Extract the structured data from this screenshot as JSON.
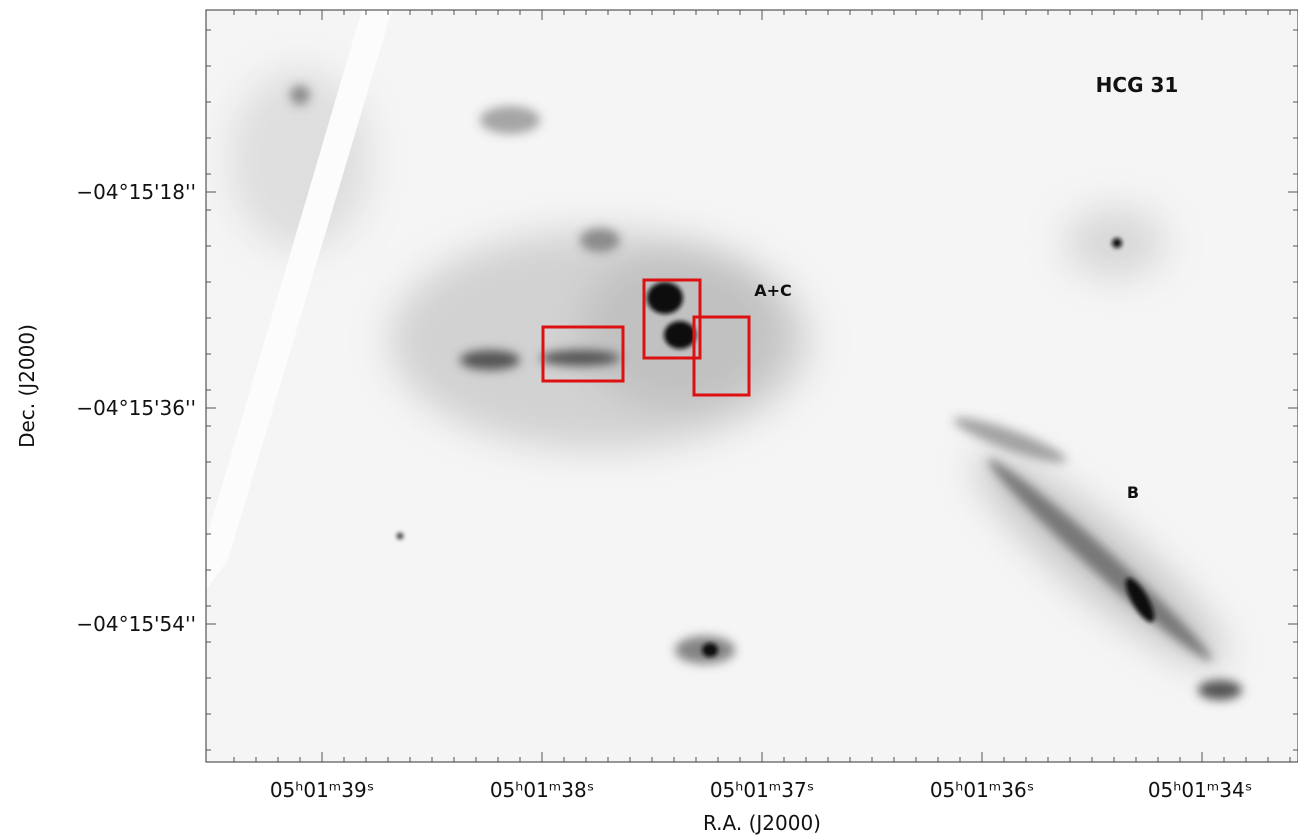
{
  "image": {
    "annotations": {
      "title": "HCG 31",
      "ac": "A+C",
      "b": "B"
    },
    "x_axis": {
      "label": "R.A. (J2000)",
      "ticks": [
        "05ʰ01ᵐ39ˢ",
        "05ʰ01ᵐ38ˢ",
        "05ʰ01ᵐ37ˢ",
        "05ʰ01ᵐ36ˢ",
        "05ʰ01ᵐ34ˢ"
      ]
    },
    "y_axis": {
      "label": "Dec. (J2000)",
      "ticks": [
        "−04°15'18''",
        "−04°15'36''",
        "−04°15'54''"
      ]
    }
  }
}
